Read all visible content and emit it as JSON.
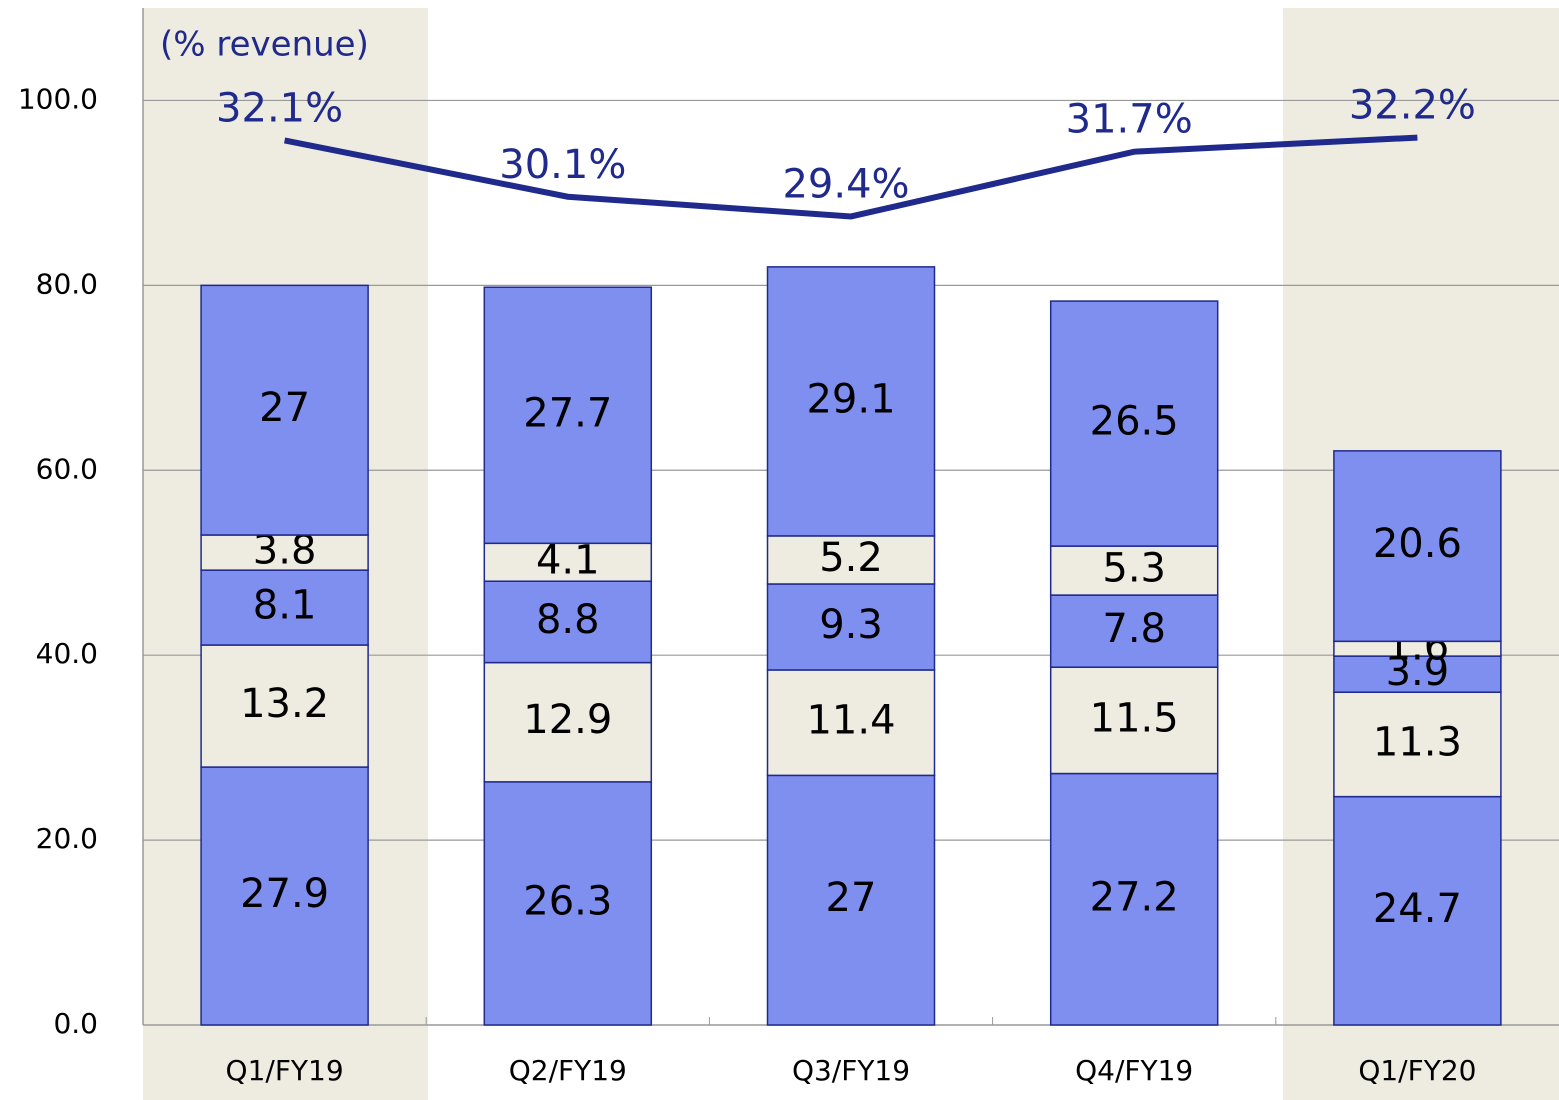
{
  "chart_data": {
    "type": "stacked_bar_line",
    "annotation": "(% revenue)",
    "categories": [
      "Q1/FY19",
      "Q2/FY19",
      "Q3/FY19",
      "Q4/FY19",
      "Q1/FY20"
    ],
    "series": [
      {
        "color": "#7f8ff0",
        "values": [
          27.9,
          26.3,
          27.0,
          27.2,
          24.7
        ]
      },
      {
        "color": "#eeebe0",
        "values": [
          13.2,
          12.9,
          11.4,
          11.5,
          11.3
        ]
      },
      {
        "color": "#7f8ff0",
        "values": [
          8.1,
          8.8,
          9.3,
          7.8,
          3.9
        ]
      },
      {
        "color": "#eeebe0",
        "values": [
          3.8,
          4.1,
          5.2,
          5.3,
          1.6
        ]
      },
      {
        "color": "#7f8ff0",
        "values": [
          27.0,
          27.7,
          29.1,
          26.5,
          20.6
        ]
      },
      {
        "type": "line",
        "axis": "y2",
        "color": "#1f2a8c",
        "values": [
          32.1,
          30.1,
          29.4,
          31.7,
          32.2
        ],
        "value_labels": [
          "32.1%",
          "30.1%",
          "29.4%",
          "31.7%",
          "32.2%"
        ]
      }
    ],
    "ylim": [
      0,
      110
    ],
    "yticks": [
      {
        "value": 0,
        "label": "0.0"
      },
      {
        "value": 20,
        "label": "20.0"
      },
      {
        "value": 40,
        "label": "40.0"
      },
      {
        "value": 60,
        "label": "60.0"
      },
      {
        "value": 80,
        "label": "80.0"
      },
      {
        "value": 100,
        "label": "100.0"
      }
    ],
    "y2lim": [
      0.7,
      36.8
    ],
    "grid": true
  }
}
